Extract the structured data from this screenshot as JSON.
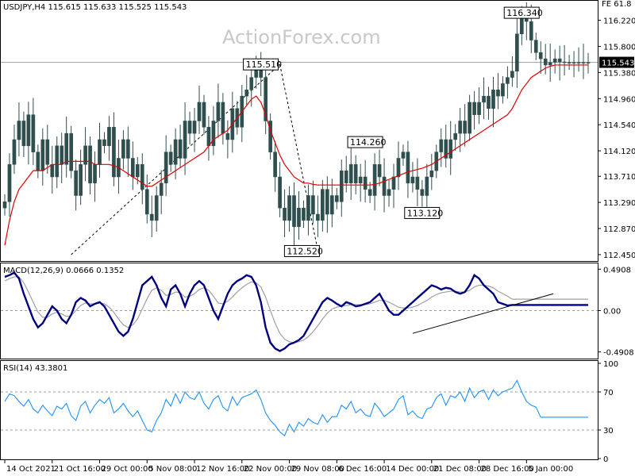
{
  "watermark": "ActionForex.com",
  "price_header": "USDJPY,H4  115.615 115.633 115.525 115.543",
  "price_top_right": "FE 61.8",
  "macd_header": "MACD(12,26,9) 0.0666 0.1352",
  "rsi_header": "RSI(14) 43.3801",
  "colors": {
    "candle": "#2f4f4f",
    "moving_average": "#e00000",
    "macd_line": "#000080",
    "signal_line": "#a0a0a0",
    "rsi_line": "#1e90ff",
    "trendline": "#000000",
    "grid_dashed": "#9e9e9e",
    "current_price_line": "#9e9e9e"
  },
  "chart_data": [
    {
      "type": "candlestick",
      "panel": "price",
      "symbol": "USDJPY",
      "timeframe": "H4",
      "ohlc_last": {
        "open": 115.615,
        "high": 115.633,
        "low": 115.525,
        "close": 115.543
      },
      "current_price": 115.543,
      "current_price_label": "115.543",
      "ylim": [
        112.36,
        116.52
      ],
      "y_ticks": [
        116.22,
        115.8,
        115.38,
        114.96,
        114.54,
        114.12,
        113.71,
        113.29,
        112.87,
        112.45
      ],
      "y_tick_labels": [
        "116.220",
        "115.800",
        "115.380",
        "114.960",
        "114.540",
        "114.120",
        "113.710",
        "113.290",
        "112.870",
        "112.450"
      ],
      "x_labels": [
        "14 Oct 2021",
        "21 Oct 16:00",
        "29 Oct 00:00",
        "5 Nov 08:00",
        "12 Nov 16:00",
        "22 Nov 00:00",
        "29 Nov 08:00",
        "6 Dec 16:00",
        "14 Dec 00:00",
        "21 Dec 08:00",
        "28 Dec 16:00",
        "5 Jan 00:00"
      ],
      "x_label_pos": [
        0,
        10,
        20,
        30,
        40,
        50,
        60,
        70,
        80,
        90,
        100,
        110
      ],
      "n_periods": 124,
      "closes": [
        113.3,
        113.9,
        114.3,
        114.6,
        114.2,
        114.7,
        114.1,
        113.8,
        114.3,
        113.9,
        113.7,
        114.2,
        113.9,
        114.4,
        113.8,
        113.4,
        113.9,
        114.2,
        113.6,
        113.9,
        114.3,
        114.2,
        114.5,
        113.7,
        114.0,
        114.3,
        114.0,
        113.7,
        113.9,
        113.5,
        113.1,
        113.0,
        113.4,
        113.6,
        114.1,
        113.9,
        114.3,
        114.0,
        114.6,
        114.4,
        114.6,
        114.9,
        114.5,
        114.2,
        114.6,
        114.9,
        114.4,
        114.3,
        114.8,
        114.5,
        115.0,
        115.1,
        115.3,
        115.5,
        115.3,
        114.6,
        114.1,
        113.7,
        113.2,
        113.0,
        113.4,
        112.9,
        113.2,
        113.0,
        113.4,
        113.1,
        113.0,
        113.5,
        113.1,
        113.4,
        113.3,
        113.8,
        113.6,
        113.9,
        113.6,
        113.7,
        113.5,
        113.4,
        113.9,
        113.7,
        113.4,
        113.5,
        113.7,
        114.0,
        114.1,
        113.6,
        113.7,
        113.5,
        113.4,
        113.7,
        113.8,
        114.1,
        114.3,
        114.0,
        114.3,
        114.4,
        114.6,
        114.4,
        114.9,
        114.7,
        114.9,
        115.0,
        114.8,
        115.1,
        115.0,
        115.2,
        115.3,
        115.4,
        116.0,
        116.3,
        116.2,
        115.9,
        115.7,
        115.6,
        115.5,
        115.543,
        115.6,
        115.55,
        115.543,
        115.543,
        115.543,
        115.543,
        115.543,
        115.543
      ],
      "moving_average": [
        112.6,
        113.0,
        113.3,
        113.5,
        113.6,
        113.7,
        113.8,
        113.8,
        113.8,
        113.85,
        113.9,
        113.9,
        113.9,
        113.95,
        113.95,
        113.95,
        113.95,
        113.95,
        113.95,
        113.9,
        113.9,
        113.9,
        113.9,
        113.88,
        113.85,
        113.8,
        113.75,
        113.7,
        113.65,
        113.6,
        113.55,
        113.55,
        113.6,
        113.65,
        113.7,
        113.75,
        113.8,
        113.85,
        113.9,
        113.95,
        114.0,
        114.05,
        114.1,
        114.2,
        114.3,
        114.35,
        114.4,
        114.45,
        114.55,
        114.65,
        114.75,
        114.85,
        114.95,
        115.0,
        114.9,
        114.7,
        114.45,
        114.25,
        114.05,
        113.9,
        113.8,
        113.7,
        113.65,
        113.6,
        113.6,
        113.58,
        113.57,
        113.57,
        113.57,
        113.57,
        113.57,
        113.57,
        113.57,
        113.57,
        113.57,
        113.57,
        113.57,
        113.57,
        113.58,
        113.6,
        113.63,
        113.66,
        113.69,
        113.72,
        113.75,
        113.78,
        113.8,
        113.82,
        113.84,
        113.87,
        113.9,
        113.95,
        114.0,
        114.05,
        114.1,
        114.15,
        114.2,
        114.25,
        114.3,
        114.35,
        114.4,
        114.45,
        114.5,
        114.55,
        114.6,
        114.65,
        114.7,
        114.8,
        114.95,
        115.1,
        115.2,
        115.3,
        115.35,
        115.4,
        115.45,
        115.48,
        115.5,
        115.5,
        115.5,
        115.5,
        115.5,
        115.5,
        115.5,
        115.5
      ],
      "annotations": [
        {
          "label": "116.340",
          "value": 116.34,
          "index": 113
        },
        {
          "label": "115.510",
          "value": 115.51,
          "index": 58
        },
        {
          "label": "114.260",
          "value": 114.26,
          "index": 80
        },
        {
          "label": "113.120",
          "value": 113.12,
          "index": 92
        },
        {
          "label": "112.520",
          "value": 112.52,
          "index": 66
        }
      ],
      "fib_line": {
        "from": {
          "index": 14,
          "value": 112.45
        },
        "to": {
          "index": 58,
          "value": 115.51
        }
      },
      "fib_drop_line": {
        "from": {
          "index": 58,
          "value": 115.51
        },
        "to": {
          "index": 66,
          "value": 112.52
        }
      }
    },
    {
      "type": "line",
      "panel": "macd",
      "name": "MACD(12,26,9)",
      "values_label": "0.0666 0.1352",
      "ylim": [
        -0.56,
        0.55
      ],
      "y_ticks": [
        0.4908,
        0.0,
        -0.4908
      ],
      "y_tick_labels": [
        "0.4908",
        "0.00",
        "-0.4908"
      ],
      "macd": [
        0.4,
        0.42,
        0.45,
        0.38,
        0.2,
        0.05,
        -0.1,
        -0.2,
        -0.15,
        -0.05,
        0.05,
        0.0,
        -0.1,
        -0.15,
        -0.05,
        0.1,
        0.15,
        0.12,
        0.05,
        0.08,
        0.1,
        0.05,
        -0.05,
        -0.15,
        -0.25,
        -0.3,
        -0.25,
        -0.1,
        0.1,
        0.3,
        0.35,
        0.4,
        0.3,
        0.15,
        0.05,
        0.25,
        0.3,
        0.2,
        0.05,
        0.2,
        0.3,
        0.35,
        0.3,
        0.15,
        0.0,
        -0.1,
        0.05,
        0.2,
        0.3,
        0.35,
        0.38,
        0.42,
        0.4,
        0.3,
        0.1,
        -0.2,
        -0.38,
        -0.45,
        -0.48,
        -0.45,
        -0.4,
        -0.38,
        -0.35,
        -0.3,
        -0.2,
        -0.1,
        0.0,
        0.1,
        0.15,
        0.12,
        0.08,
        0.05,
        0.1,
        0.08,
        0.05,
        0.06,
        0.08,
        0.1,
        0.15,
        0.2,
        0.1,
        0.0,
        -0.05,
        -0.05,
        0.0,
        0.05,
        0.1,
        0.15,
        0.2,
        0.25,
        0.3,
        0.28,
        0.25,
        0.27,
        0.26,
        0.22,
        0.2,
        0.22,
        0.3,
        0.42,
        0.38,
        0.3,
        0.25,
        0.2,
        0.1,
        0.08,
        0.06,
        0.0666,
        0.0666,
        0.0666,
        0.0666,
        0.0666,
        0.0666,
        0.0666,
        0.0666,
        0.0666,
        0.0666,
        0.0666,
        0.0666,
        0.0666,
        0.0666,
        0.0666,
        0.0666,
        0.0666
      ],
      "signal": [
        0.35,
        0.38,
        0.4,
        0.4,
        0.33,
        0.22,
        0.1,
        -0.02,
        -0.08,
        -0.08,
        -0.04,
        -0.02,
        -0.04,
        -0.07,
        -0.06,
        0.0,
        0.06,
        0.09,
        0.08,
        0.08,
        0.09,
        0.08,
        0.04,
        -0.02,
        -0.1,
        -0.17,
        -0.2,
        -0.17,
        -0.1,
        0.02,
        0.14,
        0.24,
        0.27,
        0.24,
        0.18,
        0.19,
        0.22,
        0.21,
        0.16,
        0.17,
        0.2,
        0.25,
        0.27,
        0.24,
        0.17,
        0.09,
        0.08,
        0.11,
        0.16,
        0.22,
        0.27,
        0.31,
        0.34,
        0.33,
        0.28,
        0.16,
        0.0,
        -0.15,
        -0.27,
        -0.34,
        -0.37,
        -0.38,
        -0.37,
        -0.35,
        -0.31,
        -0.25,
        -0.18,
        -0.1,
        -0.03,
        0.02,
        0.04,
        0.05,
        0.06,
        0.07,
        0.07,
        0.07,
        0.07,
        0.08,
        0.1,
        0.12,
        0.12,
        0.1,
        0.07,
        0.04,
        0.03,
        0.03,
        0.04,
        0.06,
        0.09,
        0.12,
        0.16,
        0.19,
        0.21,
        0.22,
        0.23,
        0.23,
        0.22,
        0.22,
        0.24,
        0.28,
        0.3,
        0.3,
        0.29,
        0.27,
        0.23,
        0.2,
        0.17,
        0.1352,
        0.1352,
        0.1352,
        0.1352,
        0.1352,
        0.1352,
        0.1352,
        0.1352,
        0.1352,
        0.1352,
        0.1352,
        0.1352,
        0.1352,
        0.1352,
        0.1352,
        0.1352,
        0.1352
      ],
      "trendline": {
        "from": {
          "index": 86,
          "value": -0.27
        },
        "to": {
          "index": 114,
          "value": 0.2
        }
      }
    },
    {
      "type": "line",
      "panel": "rsi",
      "name": "RSI(14)",
      "value_label": "43.3801",
      "ylim": [
        0,
        100
      ],
      "y_ticks": [
        100,
        70,
        30,
        0
      ],
      "y_tick_labels": [
        "100",
        "70",
        "30",
        "0"
      ],
      "values": [
        60,
        68,
        66,
        60,
        55,
        62,
        52,
        48,
        56,
        50,
        45,
        55,
        52,
        58,
        45,
        40,
        55,
        60,
        48,
        56,
        62,
        58,
        64,
        48,
        52,
        58,
        50,
        44,
        50,
        40,
        30,
        28,
        40,
        48,
        62,
        55,
        68,
        58,
        70,
        64,
        62,
        70,
        58,
        52,
        62,
        66,
        54,
        50,
        65,
        56,
        64,
        66,
        68,
        72,
        62,
        48,
        40,
        35,
        28,
        24,
        36,
        28,
        38,
        34,
        42,
        38,
        36,
        46,
        38,
        44,
        44,
        56,
        52,
        60,
        48,
        52,
        46,
        44,
        58,
        52,
        44,
        48,
        52,
        62,
        66,
        46,
        50,
        44,
        42,
        52,
        54,
        64,
        68,
        56,
        66,
        64,
        70,
        60,
        74,
        64,
        70,
        72,
        62,
        72,
        66,
        70,
        72,
        74,
        82,
        70,
        60,
        56,
        54,
        43.3801,
        43.3801,
        43.3801,
        43.3801,
        43.3801,
        43.3801,
        43.3801,
        43.3801,
        43.3801,
        43.3801,
        43.3801
      ]
    }
  ]
}
